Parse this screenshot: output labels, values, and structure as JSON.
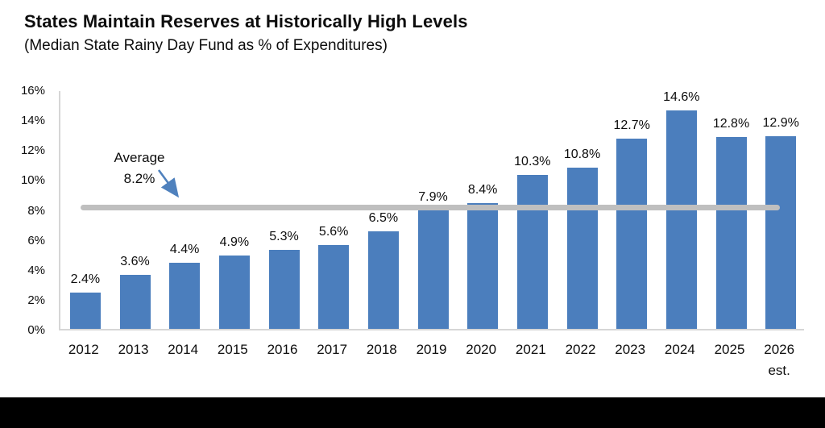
{
  "title": "States Maintain Reserves at Historically High Levels",
  "subtitle": "(Median State Rainy Day Fund as % of Expenditures)",
  "colors": {
    "bar": "#4b7ebd",
    "average_line": "#bfbfbf",
    "arrow": "#4f81bd",
    "axis": "#d6d6d6",
    "text": "#0d0d0d",
    "footer": "#000000"
  },
  "chart_data": {
    "type": "bar",
    "categories": [
      "2012",
      "2013",
      "2014",
      "2015",
      "2016",
      "2017",
      "2018",
      "2019",
      "2020",
      "2021",
      "2022",
      "2023",
      "2024",
      "2025",
      "2026"
    ],
    "values": [
      2.4,
      3.6,
      4.4,
      4.9,
      5.3,
      5.6,
      6.5,
      7.9,
      8.4,
      10.3,
      10.8,
      12.7,
      14.6,
      12.8,
      12.9
    ],
    "data_labels": [
      "2.4%",
      "3.6%",
      "4.4%",
      "4.9%",
      "5.3%",
      "5.6%",
      "6.5%",
      "7.9%",
      "8.4%",
      "10.3%",
      "10.8%",
      "12.7%",
      "14.6%",
      "12.8%",
      "12.9%"
    ],
    "x_sub_label": {
      "category": "2026",
      "text": "est."
    },
    "ylim": [
      0,
      16
    ],
    "y_tick_step": 2,
    "y_tick_labels": [
      "0%",
      "2%",
      "4%",
      "6%",
      "8%",
      "10%",
      "12%",
      "14%",
      "16%"
    ],
    "grid": false,
    "legend": false,
    "average": {
      "value": 8.2,
      "label_line1": "Average",
      "label_line2": "8.2%"
    }
  }
}
